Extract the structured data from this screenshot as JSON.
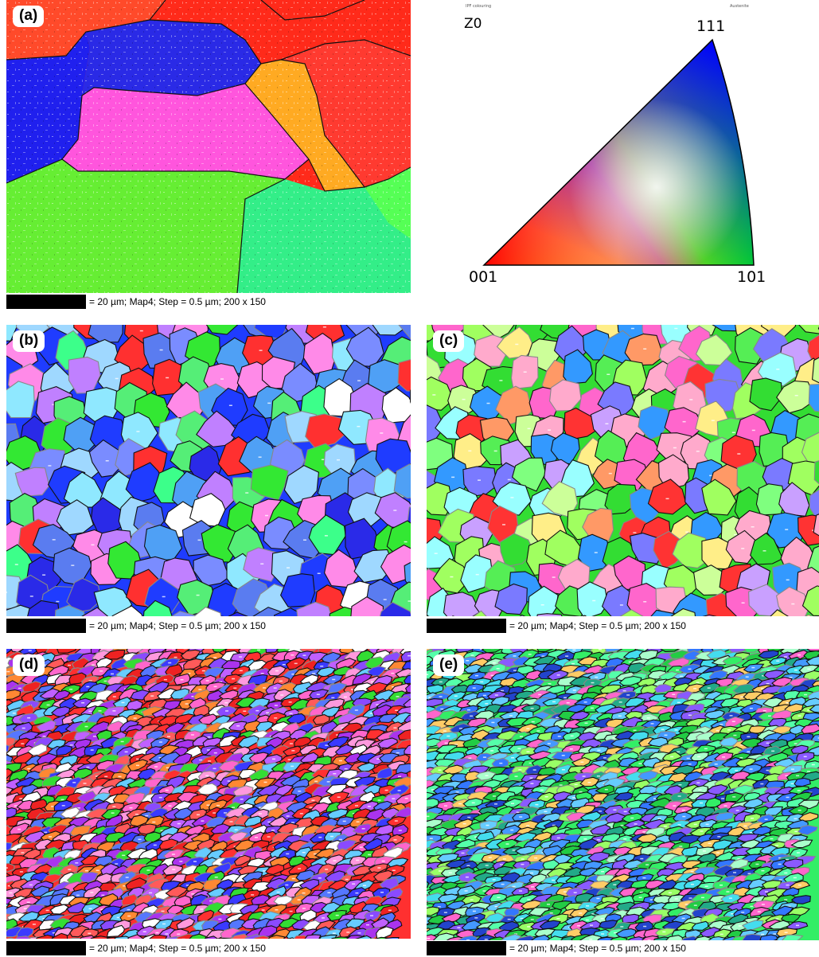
{
  "scale_bar_text": "= 20 µm; Map4; Step = 0.5 µm; 200 x 150",
  "panels": [
    {
      "id": "a",
      "label": "(a)"
    },
    {
      "id": "b",
      "label": "(b)"
    },
    {
      "id": "c",
      "label": "(c)"
    },
    {
      "id": "d",
      "label": "(d)"
    },
    {
      "id": "e",
      "label": "(e)"
    }
  ],
  "ipf_key": {
    "direction": "Z0",
    "corners": {
      "bottom_left": "001",
      "bottom_right": "101",
      "top": "111"
    },
    "tiny_left": "IPF colouring",
    "tiny_right": "Austenite",
    "colors": {
      "001": "#ff0000",
      "101": "#00ff00",
      "111": "#0000ff"
    }
  },
  "palettes": {
    "b": [
      "#1f3cff",
      "#2a2ae8",
      "#5a7cf0",
      "#33e833",
      "#55ee77",
      "#8fe8ff",
      "#4fa0f5",
      "#7a8cff",
      "#ff3030",
      "#ff8ae8",
      "#9fd8ff",
      "#3cff8a",
      "#c080ff",
      "#ffffff"
    ],
    "c": [
      "#33dd33",
      "#55ee55",
      "#7fff7f",
      "#a0ff60",
      "#ff9966",
      "#ff3333",
      "#ffaacc",
      "#7a7aff",
      "#ccff99",
      "#ffee88",
      "#99ffff",
      "#ff66cc",
      "#3399ff",
      "#c9a0ff"
    ],
    "d": [
      "#ff3030",
      "#ff5a5a",
      "#ff8833",
      "#c060ff",
      "#8a4aff",
      "#3a3aff",
      "#ff66cc",
      "#33dd33",
      "#66ccff",
      "#ffffff",
      "#ff99dd",
      "#5577ff",
      "#ee2222",
      "#aa33ee"
    ],
    "e": [
      "#33ee66",
      "#22cc44",
      "#55ffaa",
      "#3377ff",
      "#2244cc",
      "#66ccff",
      "#44ddee",
      "#8a5aff",
      "#22aa88",
      "#aaffcc",
      "#ff66cc",
      "#ffcc66",
      "#4499ff",
      "#99ff66"
    ]
  }
}
